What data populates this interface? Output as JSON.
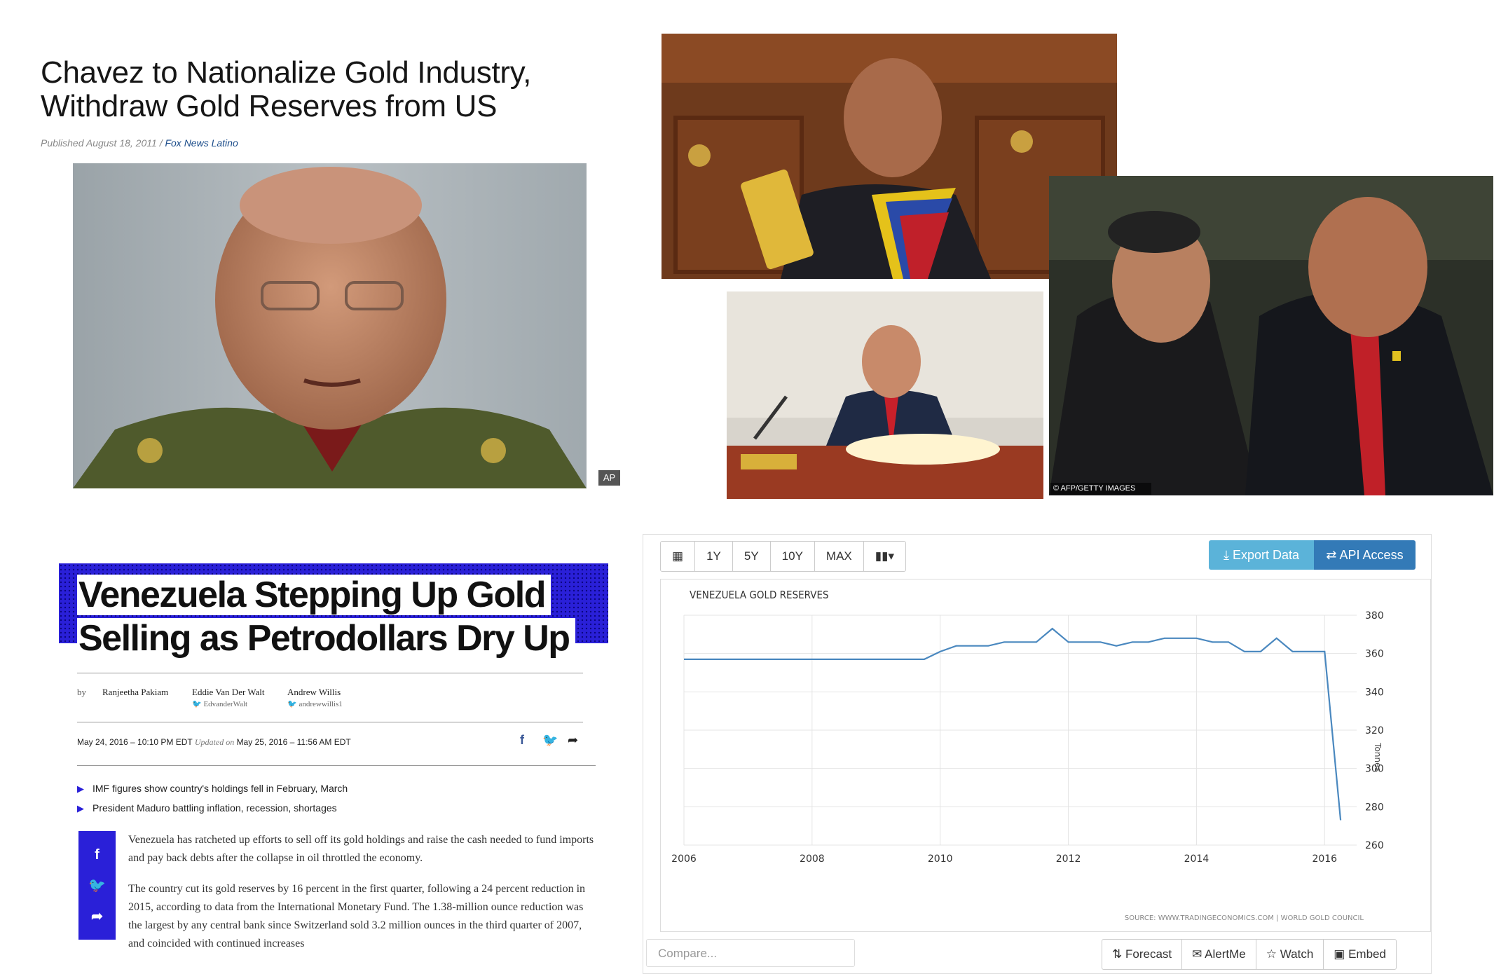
{
  "fox": {
    "title_line1": "Chavez to Nationalize Gold Industry,",
    "title_line2": "Withdraw Gold Reserves from US",
    "published": "Published August 18, 2011",
    "separator": "/",
    "source": "Fox News Latino",
    "photo_credit": "AP"
  },
  "collage": {
    "photo_credit": "© AFP/GETTY IMAGES"
  },
  "bloomberg": {
    "headline_line1": "Venezuela Stepping Up Gold",
    "headline_line2": "Selling as Petrodollars Dry Up",
    "by": "by",
    "authors": [
      {
        "name": "Ranjeetha Pakiam",
        "handle": ""
      },
      {
        "name": "Eddie Van Der Walt",
        "handle": "EdvanderWalt"
      },
      {
        "name": "Andrew Willis",
        "handle": "andrewwillis1"
      }
    ],
    "date": "May 24, 2016 – 10:10 PM EDT",
    "updated_label": "Updated on",
    "updated": "May 25, 2016 – 11:56 AM EDT",
    "bullets": [
      "IMF figures show country's holdings fell in February, March",
      "President Maduro battling inflation, recession, shortages"
    ],
    "paragraphs": [
      "Venezuela has ratcheted up efforts to sell off its gold holdings and raise the cash needed to fund imports and pay back debts after the collapse in oil throttled the economy.",
      "The country cut its gold reserves by 16 percent in the first quarter, following a 24 percent reduction in 2015, according to data from the International Monetary Fund. The 1.38-million ounce reduction was the largest by any central bank since Switzerland sold 3.2 million ounces in the third quarter of 2007, and coincided with continued increases"
    ],
    "icons": [
      "facebook-icon",
      "twitter-icon",
      "share-arrow-icon"
    ]
  },
  "te": {
    "toolbar": [
      "1Y",
      "5Y",
      "10Y",
      "MAX"
    ],
    "export_label": "Export Data",
    "api_label": "API Access",
    "compare_placeholder": "Compare...",
    "actions": [
      "Forecast",
      "AlertMe",
      "Watch",
      "Embed"
    ],
    "source_note": "SOURCE: WWW.TRADINGECONOMICS.COM | WORLD GOLD COUNCIL",
    "colors": {
      "line": "#4a88bf",
      "export": "#5bb3d9",
      "api": "#337ab7"
    }
  },
  "chart_data": {
    "type": "line",
    "title": "VENEZUELA GOLD RESERVES",
    "xlabel": "",
    "ylabel": "Tonnes",
    "xlim": [
      2006,
      2016.5
    ],
    "ylim": [
      260,
      380
    ],
    "x_ticks": [
      "2006",
      "2008",
      "2010",
      "2012",
      "2014",
      "2016"
    ],
    "y_ticks": [
      "260",
      "280",
      "300",
      "320",
      "340",
      "360",
      "380"
    ],
    "grid": true,
    "x": [
      2006.0,
      2006.5,
      2007.0,
      2007.5,
      2008.0,
      2008.5,
      2009.0,
      2009.5,
      2009.75,
      2010.0,
      2010.25,
      2010.5,
      2010.75,
      2011.0,
      2011.25,
      2011.5,
      2011.75,
      2012.0,
      2012.25,
      2012.5,
      2012.75,
      2013.0,
      2013.25,
      2013.5,
      2013.75,
      2014.0,
      2014.25,
      2014.5,
      2014.75,
      2015.0,
      2015.25,
      2015.5,
      2015.75,
      2016.0,
      2016.25
    ],
    "values": [
      357,
      357,
      357,
      357,
      357,
      357,
      357,
      357,
      357,
      361,
      364,
      364,
      364,
      366,
      366,
      366,
      373,
      366,
      366,
      366,
      364,
      366,
      366,
      368,
      368,
      368,
      366,
      366,
      361,
      361,
      368,
      361,
      361,
      361,
      273
    ]
  }
}
